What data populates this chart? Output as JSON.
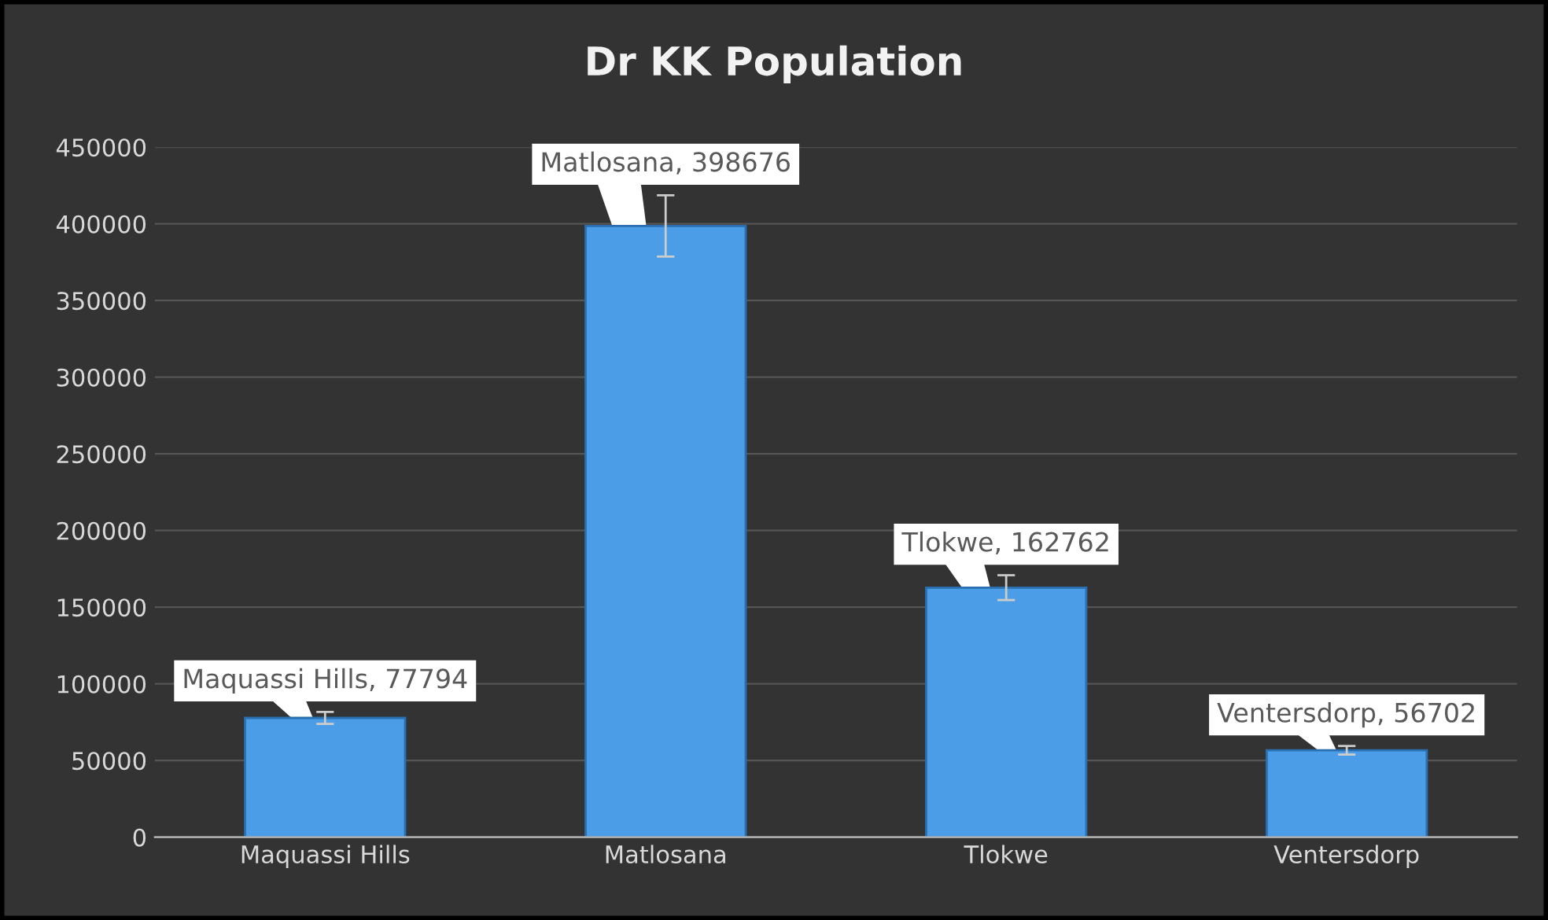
{
  "chart_data": {
    "type": "bar",
    "title": "Dr KK Population",
    "categories": [
      "Maquassi Hills",
      "Matlosana",
      "Tlokwe",
      "Ventersdorp"
    ],
    "values": [
      77794,
      398676,
      162762,
      56702
    ],
    "errors": [
      3900,
      20000,
      8100,
      2800
    ],
    "value_labels": [
      "Maquassi Hills, 77794",
      "Matlosana, 398676",
      "Tlokwe, 162762",
      "Ventersdorp, 56702"
    ],
    "color": "#4a9de6",
    "ylim": [
      0,
      450000
    ],
    "yticks": [
      0,
      50000,
      100000,
      150000,
      200000,
      250000,
      300000,
      350000,
      400000,
      450000
    ],
    "grid": "y"
  }
}
